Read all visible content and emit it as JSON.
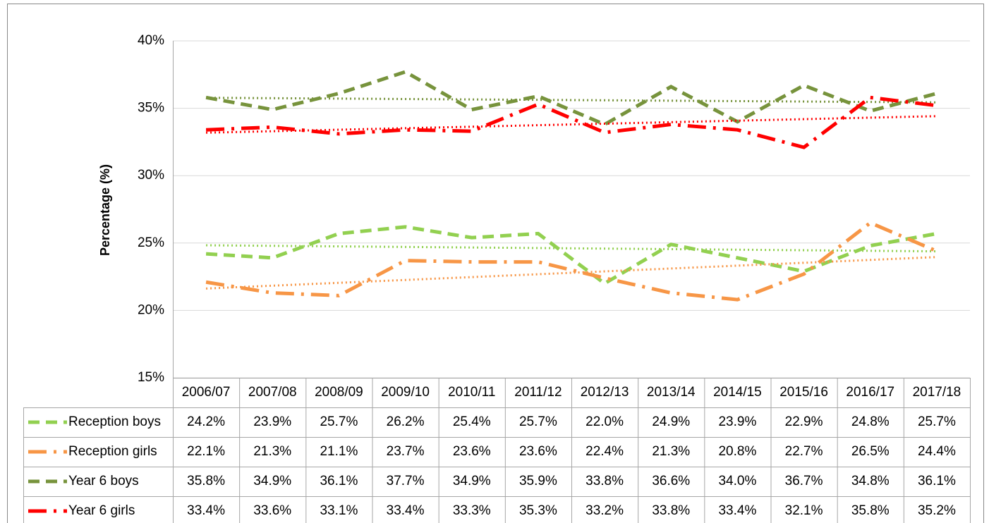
{
  "chart_data": {
    "type": "line",
    "y_label": "Percentage (%)",
    "categories": [
      "2006/07",
      "2007/08",
      "2008/09",
      "2009/10",
      "2010/11",
      "2011/12",
      "2012/13",
      "2013/14",
      "2014/15",
      "2015/16",
      "2016/17",
      "2017/18"
    ],
    "series": [
      {
        "name": "Reception boys",
        "color": "#92d050",
        "dash": "dash",
        "values": [
          24.2,
          23.9,
          25.7,
          26.2,
          25.4,
          25.7,
          22.0,
          24.9,
          23.9,
          22.9,
          24.8,
          25.7
        ],
        "value_labels": [
          "24.2%",
          "23.9%",
          "25.7%",
          "26.2%",
          "25.4%",
          "25.7%",
          "22.0%",
          "24.9%",
          "23.9%",
          "22.9%",
          "24.8%",
          "25.7%"
        ]
      },
      {
        "name": "Reception girls",
        "color": "#f79646",
        "dash": "dashdot",
        "values": [
          22.1,
          21.3,
          21.1,
          23.7,
          23.6,
          23.6,
          22.4,
          21.3,
          20.8,
          22.7,
          26.5,
          24.4
        ],
        "value_labels": [
          "22.1%",
          "21.3%",
          "21.1%",
          "23.7%",
          "23.6%",
          "23.6%",
          "22.4%",
          "21.3%",
          "20.8%",
          "22.7%",
          "26.5%",
          "24.4%"
        ]
      },
      {
        "name": "Year 6 boys",
        "color": "#77933c",
        "dash": "dash",
        "values": [
          35.8,
          34.9,
          36.1,
          37.7,
          34.9,
          35.9,
          33.8,
          36.6,
          34.0,
          36.7,
          34.8,
          36.1
        ],
        "value_labels": [
          "35.8%",
          "34.9%",
          "36.1%",
          "37.7%",
          "34.9%",
          "35.9%",
          "33.8%",
          "36.6%",
          "34.0%",
          "36.7%",
          "34.8%",
          "36.1%"
        ]
      },
      {
        "name": "Year 6 girls",
        "color": "#ff0000",
        "dash": "dashdot",
        "values": [
          33.4,
          33.6,
          33.1,
          33.4,
          33.3,
          35.3,
          33.2,
          33.8,
          33.4,
          32.1,
          35.8,
          35.2
        ],
        "value_labels": [
          "33.4%",
          "33.6%",
          "33.1%",
          "33.4%",
          "33.3%",
          "35.3%",
          "33.2%",
          "33.8%",
          "33.4%",
          "32.1%",
          "35.8%",
          "35.2%"
        ]
      }
    ],
    "ylim": [
      15,
      40
    ],
    "yticks": [
      {
        "value": 15,
        "label": "15%"
      },
      {
        "value": 20,
        "label": "20%"
      },
      {
        "value": 25,
        "label": "25%"
      },
      {
        "value": 30,
        "label": "30%"
      },
      {
        "value": 35,
        "label": "35%"
      },
      {
        "value": 40,
        "label": "40%"
      }
    ],
    "grid": true,
    "trendline": "linear",
    "data_table": true
  }
}
